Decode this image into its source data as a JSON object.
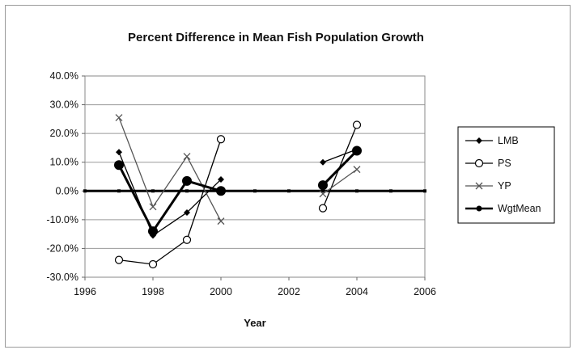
{
  "chart_data": {
    "type": "line",
    "title": "Percent Difference in Mean Fish Population Growth",
    "xlabel": "Year",
    "ylabel": "",
    "xlim": [
      1996,
      2006
    ],
    "ylim": [
      -30,
      40
    ],
    "x_ticks": [
      1996,
      1998,
      2000,
      2002,
      2004,
      2006
    ],
    "x_tick_labels": [
      "1996",
      "1998",
      "2000",
      "2002",
      "2004",
      "2006"
    ],
    "y_ticks": [
      40,
      30,
      20,
      10,
      0,
      -10,
      -20,
      -30
    ],
    "y_tick_labels": [
      "40.0%",
      "30.0%",
      "20.0%",
      "10.0%",
      "0.0%",
      "-10.0%",
      "-20.0%",
      "-30.0%"
    ],
    "grid": "horizontal",
    "legend_position": "right",
    "series": [
      {
        "name": "LMB",
        "marker": "diamond",
        "color": "#000000",
        "segments": [
          [
            [
              1997,
              13.5
            ],
            [
              1998,
              -15.5
            ],
            [
              1999,
              -7.5
            ],
            [
              2000,
              4.0
            ]
          ],
          [
            [
              2003,
              10.0
            ],
            [
              2004,
              14.5
            ]
          ]
        ]
      },
      {
        "name": "PS",
        "marker": "open-circle",
        "color": "#000000",
        "segments": [
          [
            [
              1997,
              -24.0
            ],
            [
              1998,
              -25.5
            ],
            [
              1999,
              -17.0
            ],
            [
              2000,
              18.0
            ]
          ],
          [
            [
              2003,
              -6.0
            ],
            [
              2004,
              23.0
            ]
          ]
        ]
      },
      {
        "name": "YP",
        "marker": "x",
        "color": "#555555",
        "segments": [
          [
            [
              1997,
              25.5
            ],
            [
              1998,
              -5.5
            ],
            [
              1999,
              12.0
            ],
            [
              2000,
              -10.5
            ]
          ],
          [
            [
              2003,
              -1.0
            ],
            [
              2004,
              7.5
            ]
          ]
        ]
      },
      {
        "name": "WgtMean",
        "marker": "filled-circle",
        "color": "#000000",
        "segments": [
          [
            [
              1997,
              9.0
            ],
            [
              1998,
              -14.0
            ],
            [
              1999,
              3.5
            ],
            [
              2000,
              0.0
            ]
          ],
          [
            [
              2003,
              2.0
            ],
            [
              2004,
              14.0
            ]
          ]
        ]
      }
    ],
    "reference_line": {
      "y": 0,
      "points": [
        [
          1996,
          0
        ],
        [
          1997,
          0
        ],
        [
          1998,
          0
        ],
        [
          1999,
          0
        ],
        [
          2000,
          0
        ],
        [
          2001,
          0
        ],
        [
          2002,
          0
        ],
        [
          2003,
          0
        ],
        [
          2004,
          0
        ],
        [
          2005,
          0
        ],
        [
          2006,
          0
        ]
      ]
    }
  }
}
